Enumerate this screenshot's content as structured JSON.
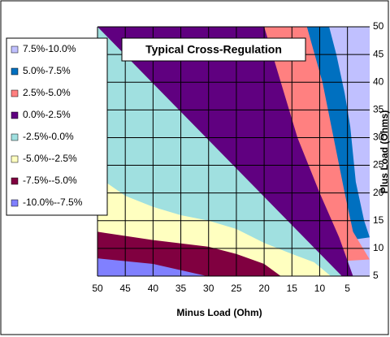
{
  "chart_data": {
    "type": "contour",
    "title": "Typical Cross-Regulation",
    "x_label": "Minus Load (Ohm)",
    "y_label": "Plus Load (Ohms)",
    "xlim": [
      50,
      1
    ],
    "ylim": [
      5,
      50
    ],
    "xticks": [
      50,
      45,
      40,
      35,
      30,
      25,
      20,
      15,
      10,
      5
    ],
    "yticks": [
      5,
      10,
      15,
      20,
      25,
      30,
      35,
      40,
      45,
      50
    ],
    "grid": true,
    "legend": "left",
    "series": [
      {
        "name": "7.5%-10.0%",
        "color": "#c0c0ff",
        "x": [],
        "y": []
      },
      {
        "name": "5.0%-7.5%",
        "color": "#0070c0",
        "x": [
          8.3,
          7,
          5.5,
          4.5,
          3.5,
          2,
          1
        ],
        "y": [
          50,
          45,
          38,
          32,
          22,
          15,
          12
        ]
      },
      {
        "name": "2.5%-5.0%",
        "color": "#ff8080",
        "x": [
          12.3,
          9.5,
          7.5,
          5.5,
          4,
          1
        ],
        "y": [
          50,
          40,
          30,
          20,
          13,
          8
        ]
      },
      {
        "name": "0.0%-2.5%",
        "color": "#600080",
        "x": [
          20,
          14,
          10,
          6.5,
          4
        ],
        "y": [
          50,
          30,
          20,
          12,
          5
        ]
      },
      {
        "name": "-2.5%-0.0%",
        "color": "#a0e0e0",
        "x": [
          50,
          6
        ],
        "y": [
          50,
          5
        ]
      },
      {
        "name": "-5.0%--2.5%",
        "color": "#ffffc0",
        "x": [
          50,
          45,
          40,
          35,
          30,
          25,
          20,
          15,
          11,
          8
        ],
        "y": [
          23,
          19.5,
          17.5,
          16,
          15,
          13.5,
          11,
          9,
          7.5,
          5
        ]
      },
      {
        "name": "-7.5%--5.0%",
        "color": "#800040",
        "x": [
          50,
          40,
          30,
          25,
          20,
          17
        ],
        "y": [
          13,
          11.5,
          10.3,
          9,
          7.2,
          5
        ]
      },
      {
        "name": "-10.0%--7.5%",
        "color": "#8080ff",
        "x": [
          50,
          40,
          30.3
        ],
        "y": [
          8.2,
          7.2,
          5
        ]
      }
    ]
  }
}
